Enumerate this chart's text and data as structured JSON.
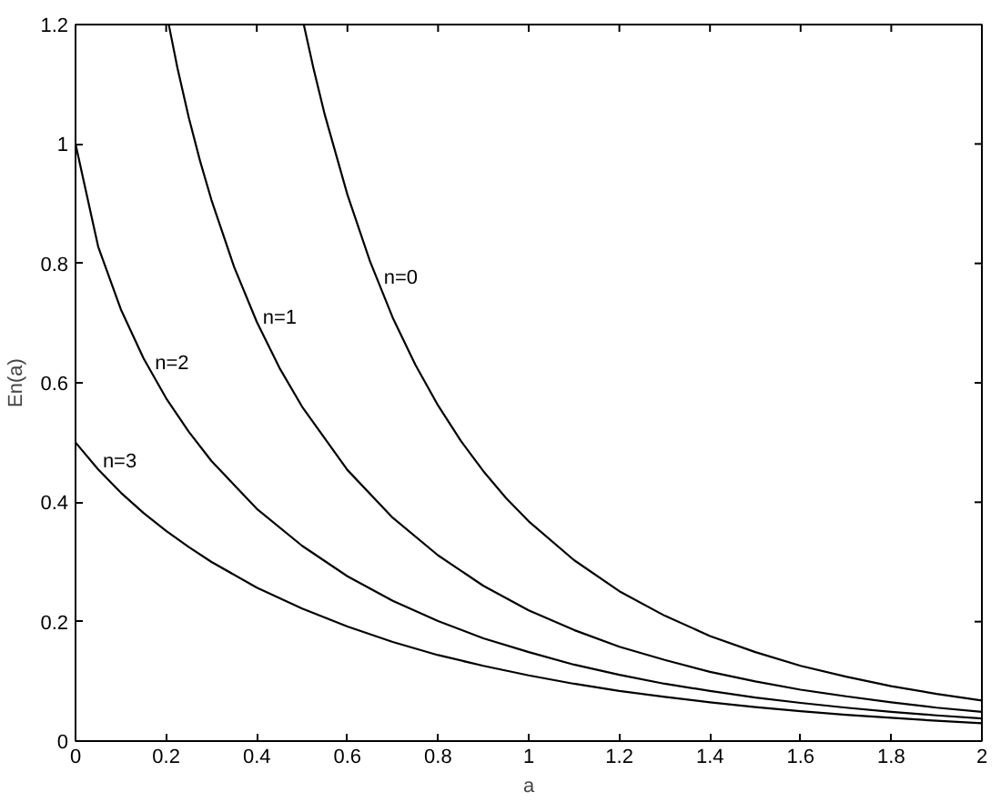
{
  "chart_data": {
    "type": "line",
    "xlabel": "a",
    "ylabel": "En(a)",
    "xlim": [
      0,
      2
    ],
    "ylim": [
      0,
      1.2
    ],
    "xticks": [
      0,
      0.2,
      0.4,
      0.6,
      0.8,
      1,
      1.2,
      1.4,
      1.6,
      1.8,
      2
    ],
    "yticks": [
      0,
      0.2,
      0.4,
      0.6,
      0.8,
      1,
      1.2
    ],
    "grid": false,
    "line_style": "solid",
    "series": [
      {
        "color": "#000000",
        "x": [
          0.504,
          0.525,
          0.55,
          0.6,
          0.65,
          0.7,
          0.75,
          0.8,
          0.85,
          0.9,
          0.95,
          1.0,
          1.1,
          1.2,
          1.3,
          1.4,
          1.5,
          1.6,
          1.7,
          1.8,
          1.9,
          2.0
        ],
        "values": [
          1.199,
          1.127,
          1.049,
          0.915,
          0.803,
          0.709,
          0.63,
          0.562,
          0.503,
          0.452,
          0.407,
          0.368,
          0.303,
          0.251,
          0.21,
          0.176,
          0.149,
          0.126,
          0.108,
          0.092,
          0.079,
          0.068
        ]
      },
      {
        "color": "#000000",
        "x": [
          0.206,
          0.225,
          0.25,
          0.275,
          0.3,
          0.35,
          0.4,
          0.45,
          0.5,
          0.6,
          0.7,
          0.8,
          0.9,
          1.0,
          1.1,
          1.2,
          1.3,
          1.4,
          1.5,
          1.6,
          1.7,
          1.8,
          1.9,
          2.0
        ],
        "values": [
          1.199,
          1.127,
          1.044,
          0.971,
          0.906,
          0.794,
          0.702,
          0.625,
          0.56,
          0.454,
          0.374,
          0.311,
          0.26,
          0.219,
          0.186,
          0.158,
          0.136,
          0.116,
          0.1,
          0.086,
          0.075,
          0.065,
          0.056,
          0.049
        ]
      },
      {
        "color": "#000000",
        "x": [
          0,
          0.05,
          0.1,
          0.15,
          0.2,
          0.25,
          0.3,
          0.4,
          0.5,
          0.6,
          0.7,
          0.8,
          0.9,
          1.0,
          1.1,
          1.2,
          1.3,
          1.4,
          1.5,
          1.6,
          1.7,
          1.8,
          1.9,
          2.0
        ],
        "values": [
          1.0,
          0.828,
          0.723,
          0.641,
          0.574,
          0.518,
          0.469,
          0.389,
          0.327,
          0.276,
          0.235,
          0.201,
          0.172,
          0.149,
          0.128,
          0.111,
          0.096,
          0.084,
          0.073,
          0.064,
          0.056,
          0.049,
          0.043,
          0.038
        ]
      },
      {
        "color": "#000000",
        "x": [
          0,
          0.05,
          0.1,
          0.15,
          0.2,
          0.25,
          0.3,
          0.4,
          0.5,
          0.6,
          0.7,
          0.8,
          0.9,
          1.0,
          1.1,
          1.2,
          1.3,
          1.4,
          1.5,
          1.6,
          1.7,
          1.8,
          1.9,
          2.0
        ],
        "values": [
          0.5,
          0.455,
          0.416,
          0.382,
          0.352,
          0.325,
          0.3,
          0.257,
          0.222,
          0.192,
          0.166,
          0.144,
          0.126,
          0.11,
          0.096,
          0.084,
          0.074,
          0.065,
          0.057,
          0.05,
          0.044,
          0.039,
          0.034,
          0.03
        ]
      }
    ],
    "annotations": [
      {
        "text": "n=0",
        "x": 0.68,
        "y": 0.775
      },
      {
        "text": "n=1",
        "x": 0.413,
        "y": 0.708
      },
      {
        "text": "n=2",
        "x": 0.175,
        "y": 0.632
      },
      {
        "text": "n=3",
        "x": 0.06,
        "y": 0.468
      }
    ]
  }
}
